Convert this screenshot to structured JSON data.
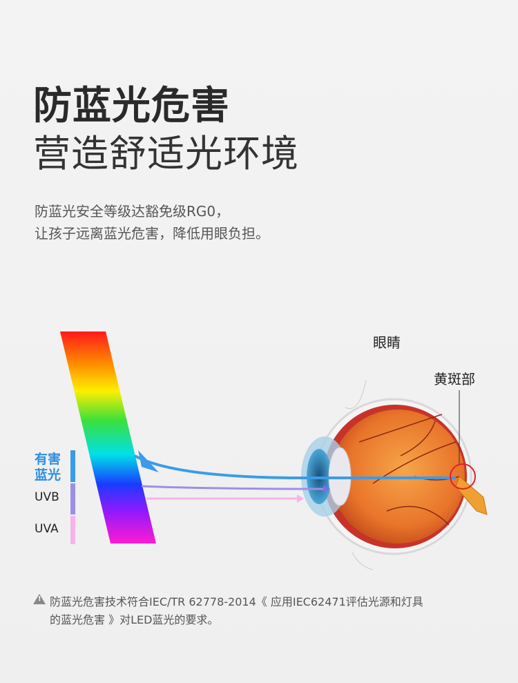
{
  "header": {
    "title": "防蓝光危害",
    "subtitle": "营造舒适光环境"
  },
  "description": {
    "line1": "防蓝光安全等级达豁免级RG0，",
    "line2": "让孩子远离蓝光危害，降低用眼负担。"
  },
  "diagram": {
    "eye_label": "眼睛",
    "macula_label": "黄斑部",
    "legend": [
      {
        "label": "有害蓝光",
        "color": "#3b9be8"
      },
      {
        "label": "UVB",
        "color": "#9c8fe6"
      },
      {
        "label": "UVA",
        "color": "#f5b4ea"
      }
    ]
  },
  "footnote": {
    "icon": "warning-icon",
    "line1": "防蓝光危害技术符合IEC/TR 62778-2014《 应用IEC62471评估光源和灯具",
    "line2": "的蓝光危害 》对LED蓝光的要求。"
  }
}
